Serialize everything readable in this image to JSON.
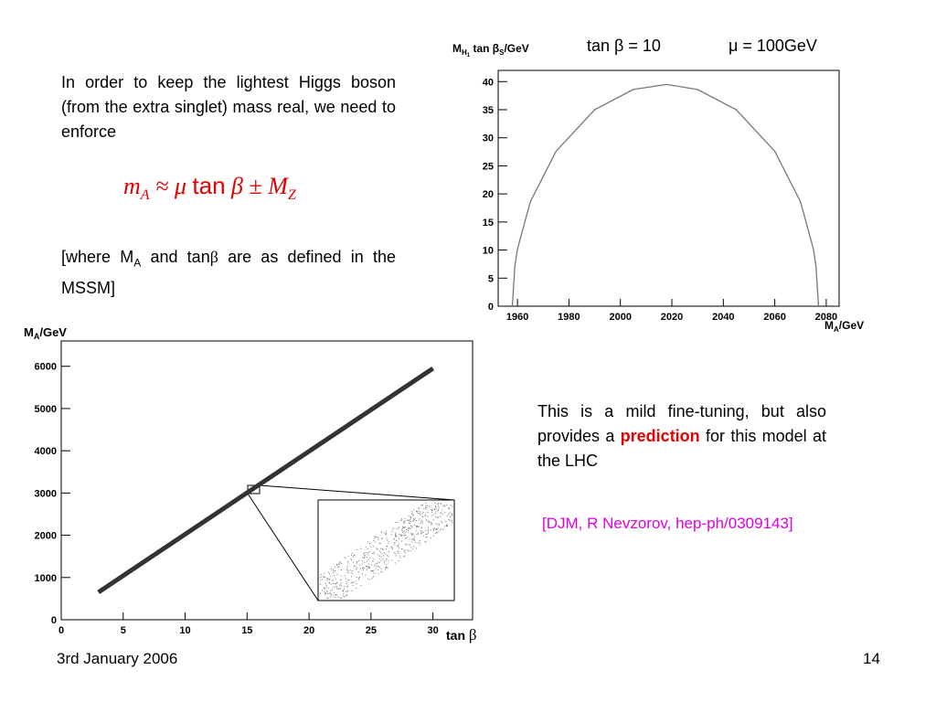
{
  "intro": "In order to keep the lightest Higgs boson (from the extra singlet) mass real, we need to enforce",
  "formula": [
    "m",
    "A",
    " ≈ μ ",
    "tan",
    " β ± M",
    "Z"
  ],
  "where": [
    "[where M",
    "A",
    " and tan",
    "β",
    " are as defined in the MSSM]"
  ],
  "remark": [
    "This is a mild fine-tuning, but also provides a ",
    "prediction",
    " for this model at the LHC"
  ],
  "reference": "[DJM, R Nevzorov, hep-ph/0309143]",
  "footer": {
    "date": "3rd January 2006",
    "page": "14"
  },
  "chart_data": [
    {
      "type": "line",
      "annotations": [
        "tan β = 10",
        "μ = 100GeV"
      ],
      "ylabel": [
        "M",
        "H",
        "1",
        " tan β",
        "S",
        "/GeV"
      ],
      "xlabel": [
        "M",
        "A",
        "/GeV"
      ],
      "series": [
        {
          "color": "#777777",
          "x": [
            1958,
            1959,
            1960,
            1965,
            1975,
            1990,
            2005,
            2018,
            2030,
            2045,
            2060,
            2070,
            2075,
            2076,
            2077
          ],
          "values": [
            0,
            7.2,
            10.2,
            18.6,
            27.6,
            35.0,
            38.6,
            39.5,
            38.6,
            35.0,
            27.6,
            18.6,
            10.2,
            7.2,
            0
          ]
        }
      ],
      "xlim": [
        1952.5,
        2085
      ],
      "ylim": [
        0,
        42
      ],
      "xticks": [
        1960,
        1980,
        2000,
        2020,
        2040,
        2060,
        2080
      ],
      "yticks": [
        0,
        5,
        10,
        15,
        20,
        25,
        30,
        35,
        40
      ]
    },
    {
      "type": "band",
      "ylabel": [
        "M",
        "A",
        "/GeV"
      ],
      "xlabel": [
        "tan ",
        "β"
      ],
      "series": [
        {
          "color": "#333333",
          "x": [
            3,
            30
          ],
          "values": [
            650,
            5950
          ]
        }
      ],
      "xlim": [
        0,
        33.2
      ],
      "ylim": [
        0,
        6600
      ],
      "xticks": [
        0,
        5,
        10,
        15,
        20,
        25,
        30
      ],
      "yticks": [
        0,
        1000,
        2000,
        3000,
        4000,
        5000,
        6000
      ]
    }
  ]
}
